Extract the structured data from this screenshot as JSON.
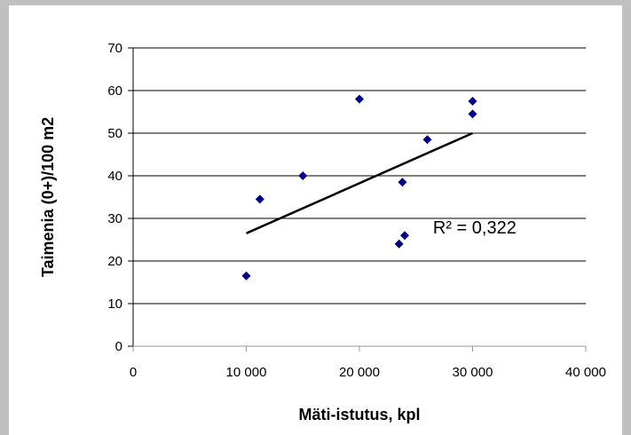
{
  "chart_data": {
    "type": "scatter",
    "title": "",
    "xlabel": "Mäti-istutus, kpl",
    "ylabel": "Taimenia (0+)/100 m2",
    "xlim": [
      0,
      40000
    ],
    "ylim": [
      0,
      70
    ],
    "x_ticks": [
      0,
      10000,
      20000,
      30000,
      40000
    ],
    "x_tick_labels": [
      "0",
      "10 000",
      "20 000",
      "30 000",
      "40 000"
    ],
    "y_ticks": [
      0,
      10,
      20,
      30,
      40,
      50,
      60,
      70
    ],
    "y_tick_labels": [
      "0",
      "10",
      "20",
      "30",
      "40",
      "50",
      "60",
      "70"
    ],
    "grid": "horizontal",
    "legend": "none",
    "series": [
      {
        "marker": "diamond",
        "color": "#00008b",
        "points": [
          {
            "x": 10000,
            "y": 16.5
          },
          {
            "x": 11200,
            "y": 34.5
          },
          {
            "x": 15000,
            "y": 40
          },
          {
            "x": 20000,
            "y": 58
          },
          {
            "x": 23500,
            "y": 24
          },
          {
            "x": 23800,
            "y": 38.5
          },
          {
            "x": 24000,
            "y": 26
          },
          {
            "x": 26000,
            "y": 48.5
          },
          {
            "x": 30000,
            "y": 57.5
          },
          {
            "x": 30000,
            "y": 54.5
          }
        ]
      }
    ],
    "trendline": {
      "type": "linear",
      "color": "#000000",
      "x": [
        10000,
        30000
      ],
      "y": [
        26.5,
        50
      ]
    },
    "annotations": [
      {
        "text": "R² = 0,322",
        "x": 26500,
        "y": 26
      }
    ]
  }
}
